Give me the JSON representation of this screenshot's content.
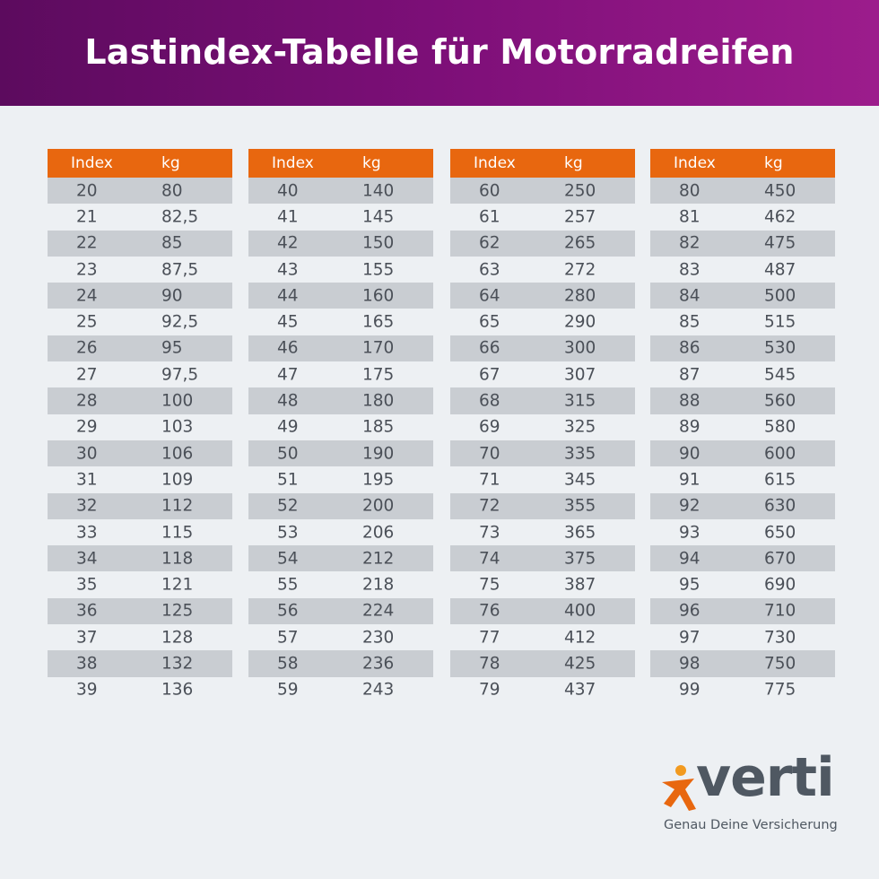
{
  "header": {
    "title": "Lastindex-Tabelle für Motorradreifen"
  },
  "tables": [
    {
      "columns": [
        "Index",
        "kg"
      ],
      "rows": [
        [
          "20",
          "80"
        ],
        [
          "21",
          "82,5"
        ],
        [
          "22",
          "85"
        ],
        [
          "23",
          "87,5"
        ],
        [
          "24",
          "90"
        ],
        [
          "25",
          "92,5"
        ],
        [
          "26",
          "95"
        ],
        [
          "27",
          "97,5"
        ],
        [
          "28",
          "100"
        ],
        [
          "29",
          "103"
        ],
        [
          "30",
          "106"
        ],
        [
          "31",
          "109"
        ],
        [
          "32",
          "112"
        ],
        [
          "33",
          "115"
        ],
        [
          "34",
          "118"
        ],
        [
          "35",
          "121"
        ],
        [
          "36",
          "125"
        ],
        [
          "37",
          "128"
        ],
        [
          "38",
          "132"
        ],
        [
          "39",
          "136"
        ]
      ]
    },
    {
      "columns": [
        "Index",
        "kg"
      ],
      "rows": [
        [
          "40",
          "140"
        ],
        [
          "41",
          "145"
        ],
        [
          "42",
          "150"
        ],
        [
          "43",
          "155"
        ],
        [
          "44",
          "160"
        ],
        [
          "45",
          "165"
        ],
        [
          "46",
          "170"
        ],
        [
          "47",
          "175"
        ],
        [
          "48",
          "180"
        ],
        [
          "49",
          "185"
        ],
        [
          "50",
          "190"
        ],
        [
          "51",
          "195"
        ],
        [
          "52",
          "200"
        ],
        [
          "53",
          "206"
        ],
        [
          "54",
          "212"
        ],
        [
          "55",
          "218"
        ],
        [
          "56",
          "224"
        ],
        [
          "57",
          "230"
        ],
        [
          "58",
          "236"
        ],
        [
          "59",
          "243"
        ]
      ]
    },
    {
      "columns": [
        "Index",
        "kg"
      ],
      "rows": [
        [
          "60",
          "250"
        ],
        [
          "61",
          "257"
        ],
        [
          "62",
          "265"
        ],
        [
          "63",
          "272"
        ],
        [
          "64",
          "280"
        ],
        [
          "65",
          "290"
        ],
        [
          "66",
          "300"
        ],
        [
          "67",
          "307"
        ],
        [
          "68",
          "315"
        ],
        [
          "69",
          "325"
        ],
        [
          "70",
          "335"
        ],
        [
          "71",
          "345"
        ],
        [
          "72",
          "355"
        ],
        [
          "73",
          "365"
        ],
        [
          "74",
          "375"
        ],
        [
          "75",
          "387"
        ],
        [
          "76",
          "400"
        ],
        [
          "77",
          "412"
        ],
        [
          "78",
          "425"
        ],
        [
          "79",
          "437"
        ]
      ]
    },
    {
      "columns": [
        "Index",
        "kg"
      ],
      "rows": [
        [
          "80",
          "450"
        ],
        [
          "81",
          "462"
        ],
        [
          "82",
          "475"
        ],
        [
          "83",
          "487"
        ],
        [
          "84",
          "500"
        ],
        [
          "85",
          "515"
        ],
        [
          "86",
          "530"
        ],
        [
          "87",
          "545"
        ],
        [
          "88",
          "560"
        ],
        [
          "89",
          "580"
        ],
        [
          "90",
          "600"
        ],
        [
          "91",
          "615"
        ],
        [
          "92",
          "630"
        ],
        [
          "93",
          "650"
        ],
        [
          "94",
          "670"
        ],
        [
          "95",
          "690"
        ],
        [
          "96",
          "710"
        ],
        [
          "97",
          "730"
        ],
        [
          "98",
          "750"
        ],
        [
          "99",
          "775"
        ]
      ]
    }
  ],
  "logo": {
    "brand": "verti",
    "tagline": "Genau Deine Versicherung"
  }
}
